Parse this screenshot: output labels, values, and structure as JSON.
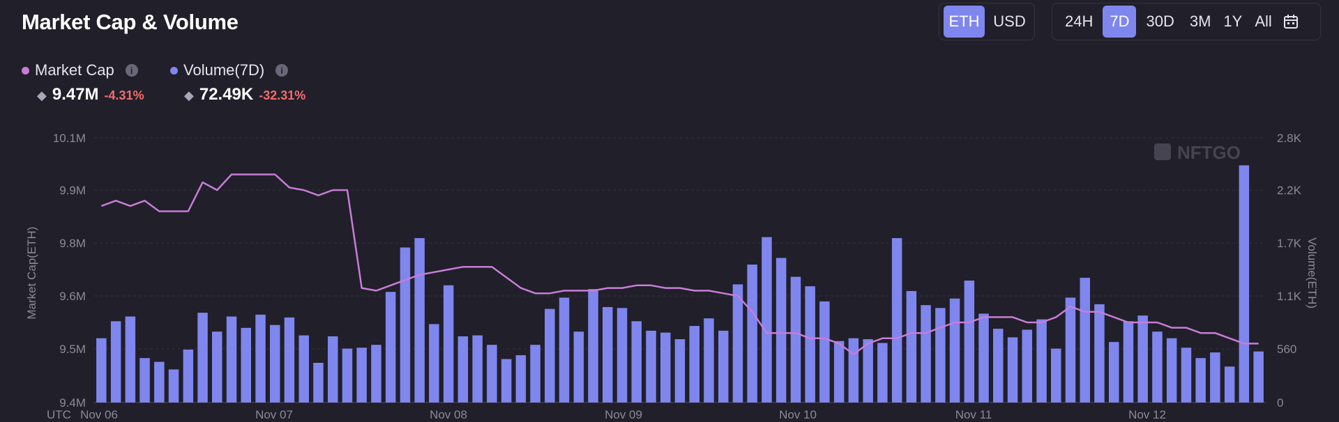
{
  "header": {
    "title": "Market Cap & Volume"
  },
  "currency_toggle": {
    "options": [
      "ETH",
      "USD"
    ],
    "selected": "ETH"
  },
  "range_toggle": {
    "options": [
      "24H",
      "7D",
      "30D",
      "3M",
      "1Y",
      "All"
    ],
    "selected": "7D",
    "calendar_icon": "calendar-icon"
  },
  "legend": {
    "market_cap": {
      "label": "Market Cap",
      "value": "9.47M",
      "change": "-4.31%",
      "color": "#c77dd8"
    },
    "volume": {
      "label": "Volume(7D)",
      "value": "72.49K",
      "change": "-32.31%",
      "color": "#7f86ee"
    }
  },
  "watermark": "NFTGO",
  "colors": {
    "accent": "#7f86ee",
    "line": "#c77dd8",
    "negative": "#f26c6c",
    "background": "#211f29"
  },
  "chart_data": {
    "type": "bar",
    "x_tick_labels": [
      "UTC",
      "Nov 06",
      "Nov 07",
      "Nov 08",
      "Nov 09",
      "Nov 10",
      "Nov 11",
      "Nov 12"
    ],
    "left_axis": {
      "label": "Market Cap(ETH)",
      "tick_labels": [
        "10.1M",
        "9.9M",
        "9.8M",
        "9.6M",
        "9.5M",
        "9.4M"
      ]
    },
    "right_axis": {
      "label": "Volume(ETH)",
      "tick_labels": [
        "2.8K",
        "2.2K",
        "1.7K",
        "1.1K",
        "560",
        "0"
      ],
      "ylim": [
        0,
        2800
      ]
    },
    "grid": true,
    "series": [
      {
        "name": "Volume(7D)",
        "type": "bar",
        "color": "#7f86ee",
        "values": [
          680,
          860,
          910,
          470,
          430,
          350,
          560,
          950,
          750,
          910,
          790,
          930,
          820,
          900,
          710,
          420,
          700,
          570,
          580,
          610,
          1170,
          1640,
          1740,
          830,
          1240,
          700,
          710,
          610,
          460,
          500,
          610,
          990,
          1110,
          750,
          1200,
          1010,
          1000,
          860,
          760,
          740,
          670,
          810,
          890,
          760,
          1250,
          1460,
          1750,
          1530,
          1330,
          1230,
          1070,
          650,
          680,
          670,
          630,
          1740,
          1180,
          1030,
          1000,
          1100,
          1290,
          940,
          780,
          690,
          770,
          880,
          570,
          1110,
          1320,
          1040,
          640,
          860,
          920,
          750,
          680,
          580,
          470,
          530,
          380,
          2510,
          540
        ]
      },
      {
        "name": "Market Cap",
        "type": "line",
        "color": "#c77dd8",
        "values": [
          9.87,
          9.88,
          9.87,
          9.88,
          9.86,
          9.86,
          9.86,
          9.93,
          9.9,
          9.96,
          9.96,
          9.96,
          9.96,
          9.91,
          9.9,
          9.89,
          9.9,
          9.9,
          9.63,
          9.62,
          9.64,
          9.66,
          9.68,
          9.69,
          9.7,
          9.71,
          9.71,
          9.71,
          9.67,
          9.63,
          9.61,
          9.61,
          9.62,
          9.62,
          9.62,
          9.63,
          9.63,
          9.64,
          9.64,
          9.63,
          9.63,
          9.62,
          9.62,
          9.61,
          9.6,
          9.57,
          9.53,
          9.53,
          9.53,
          9.52,
          9.52,
          9.51,
          9.49,
          9.51,
          9.52,
          9.52,
          9.53,
          9.53,
          9.54,
          9.55,
          9.55,
          9.56,
          9.56,
          9.56,
          9.55,
          9.55,
          9.56,
          9.58,
          9.57,
          9.57,
          9.56,
          9.55,
          9.55,
          9.55,
          9.54,
          9.54,
          9.53,
          9.53,
          9.52,
          9.51,
          9.51
        ]
      }
    ]
  }
}
